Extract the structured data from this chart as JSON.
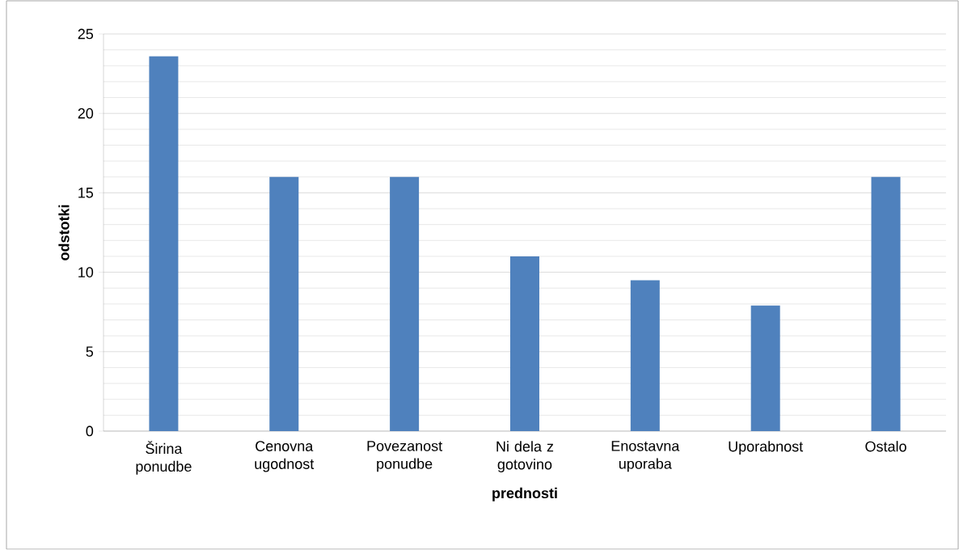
{
  "chart_data": {
    "type": "bar",
    "xlabel": "prednosti",
    "ylabel": "odstotki",
    "categories": [
      "Širina ponudbe",
      "Cenovna ugodnost",
      "Povezanost ponudbe",
      "Ni dela z gotovino",
      "Enostavna uporaba",
      "Uporabnost",
      "Ostalo"
    ],
    "values": [
      23.6,
      16,
      16,
      11,
      9.5,
      7.9,
      16
    ],
    "color": "#4f81bd",
    "ylim": [
      0,
      25
    ],
    "yticks": [
      0,
      5,
      10,
      15,
      20,
      25
    ],
    "grid": "y"
  }
}
